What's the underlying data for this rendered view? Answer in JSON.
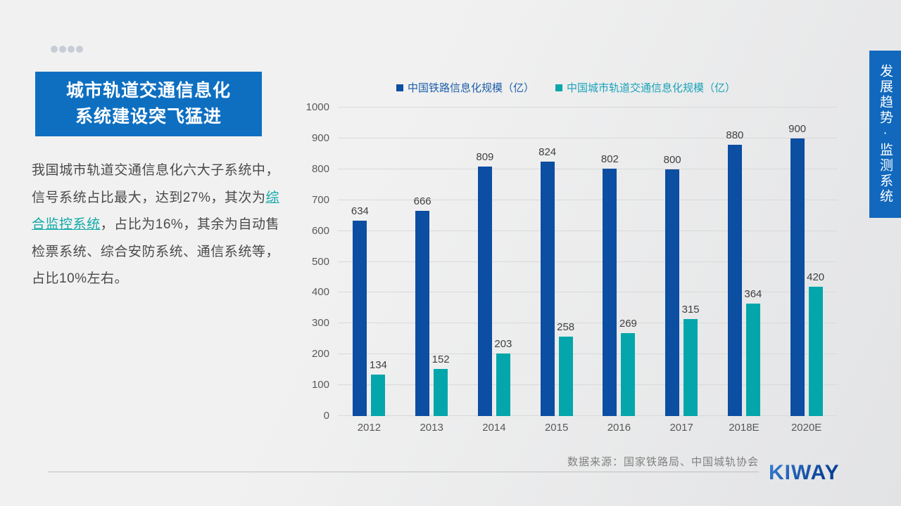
{
  "slide": {
    "title_lines": [
      "城市轨道交通信息化",
      "系统建设突飞猛进"
    ],
    "body": {
      "before": "我国城市轨道交通信息化六大子系统中，信号系统占比最大，达到27%，其次为",
      "highlight": "综合监控系统",
      "after": "，占比为16%，其余为自动售检票系统、综合安防系统、通信系统等，占比10%左右。"
    },
    "side_banner": "发展趋势·监测系统",
    "source": "数据来源：国家铁路局、中国城轨协会",
    "logo": "KIWAY"
  },
  "colors": {
    "bg1": "#f1f1f1",
    "bg2": "#e2e3e5",
    "title_box": "#0e6fc1",
    "banner": "#1168bc",
    "bar_blue": "#0b4ea2",
    "bar_teal": "#04a6ab",
    "legend_blue_text": "#1e5fa9",
    "legend_teal_text": "#1ba3b8",
    "body_text": "#4a4a4a",
    "link_teal": "#0fa8a8",
    "axis_text": "#595959",
    "value_text": "#3f3f3f",
    "grid_line": "#d9d9d9",
    "divider": "#bfbfbf",
    "dot": "#c7cdd7",
    "source_text": "#808080",
    "logo_dark": "#0a3f96",
    "logo_light": "#3b82d4"
  },
  "chart_data": {
    "type": "bar",
    "title": "",
    "xlabel": "",
    "ylabel": "",
    "categories": [
      "2012",
      "2013",
      "2014",
      "2015",
      "2016",
      "2017",
      "2018E",
      "2020E"
    ],
    "series": [
      {
        "name": "中国铁路信息化规模（亿）",
        "values": [
          634,
          666,
          809,
          824,
          802,
          800,
          880,
          900
        ]
      },
      {
        "name": "中国城市轨道交通信息化规模（亿）",
        "values": [
          134,
          152,
          203,
          258,
          269,
          315,
          364,
          420
        ]
      }
    ],
    "ylim": [
      0,
      1000
    ],
    "ytick_step": 100,
    "grid": true,
    "legend_position": "top",
    "data_labels": true
  }
}
